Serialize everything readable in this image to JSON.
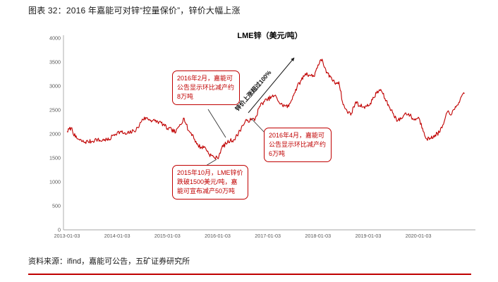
{
  "page": {
    "figure_title": "图表 32：2016 年嘉能可对锌“控量保价”，锌价大幅上涨",
    "source": "资料来源：ifind，嘉能可公告，五矿证券研究所"
  },
  "chart_data": {
    "type": "line",
    "title": "LME锌（美元/吨）",
    "series_name": "LME锌价（美元/吨）",
    "x_start": "2013-01",
    "x_end": "2020-12",
    "frequency": "monthly",
    "x_tick_labels": [
      "2013-01-03",
      "2014-01-03",
      "2015-01-03",
      "2016-01-03",
      "2017-01-03",
      "2018-01-03",
      "2019-01-03",
      "2020-01-03"
    ],
    "y_ticks": [
      0,
      500,
      1000,
      1500,
      2000,
      2500,
      3000,
      3500,
      4000
    ],
    "ylim": [
      0,
      4000
    ],
    "grid": false,
    "legend": "none",
    "line_color": "#c00000",
    "values": [
      2050,
      2130,
      1930,
      1870,
      1830,
      1840,
      1845,
      1890,
      1855,
      1885,
      1870,
      1975,
      2030,
      2040,
      1990,
      2030,
      2060,
      2130,
      2310,
      2330,
      2290,
      2270,
      2250,
      2200,
      2110,
      2090,
      2030,
      2200,
      2330,
      2070,
      1990,
      1790,
      1720,
      1725,
      1580,
      1520,
      1490,
      1710,
      1800,
      1860,
      1880,
      2020,
      2180,
      2280,
      2290,
      2310,
      2570,
      2670,
      2720,
      2780,
      2780,
      2620,
      2590,
      2570,
      2790,
      2980,
      3120,
      3260,
      3230,
      3200,
      3440,
      3560,
      3270,
      3190,
      3060,
      3090,
      2610,
      2460,
      2430,
      2670,
      2590,
      2570,
      2580,
      2710,
      2850,
      2930,
      2740,
      2570,
      2430,
      2270,
      2330,
      2440,
      2390,
      2290,
      2350,
      2120,
      1900,
      1905,
      1980,
      2030,
      2200,
      2470,
      2420,
      2560,
      2720,
      2840
    ],
    "annotations": [
      {
        "text": "2016年2月，嘉能可公告显示环比减产约8万吨"
      },
      {
        "text": "2016年4月，嘉能可公告显示环比减产约6万吨"
      },
      {
        "text": "2015年10月，LME锌价跌破1500美元/吨，嘉能可宣布减产50万吨"
      },
      {
        "text": "锌价上涨超过100%"
      }
    ]
  }
}
